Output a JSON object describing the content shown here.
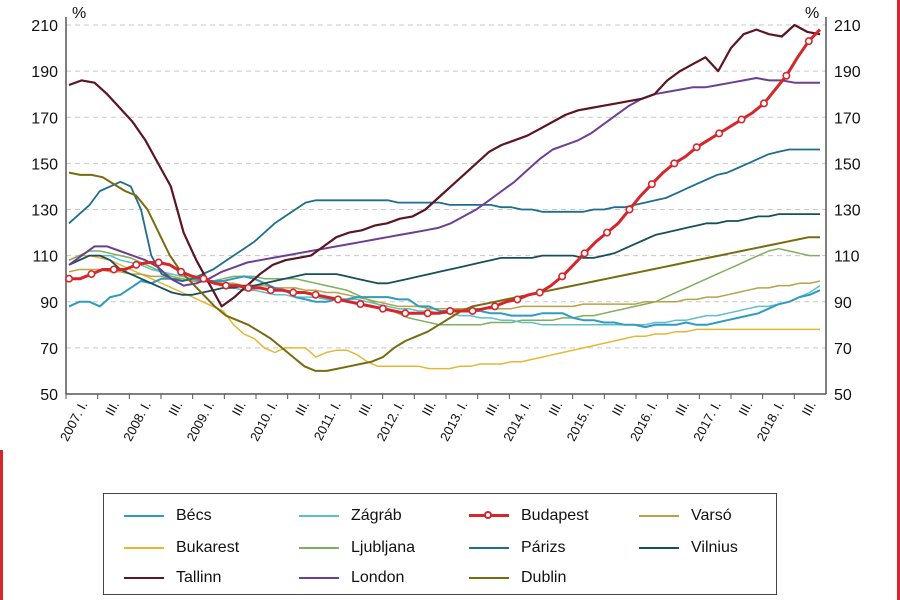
{
  "chart_data": {
    "type": "line",
    "y_unit_left": "%",
    "y_unit_right": "%",
    "ylim": [
      50,
      210
    ],
    "y_ticks": [
      50,
      70,
      90,
      110,
      130,
      150,
      170,
      190,
      210
    ],
    "grid": true,
    "legend_position": "bottom",
    "x_tick_labels": [
      "2007. I.",
      "III.",
      "2008. I.",
      "III.",
      "2009. I.",
      "III.",
      "2010. I.",
      "III.",
      "2011. I.",
      "III.",
      "2012. I.",
      "III.",
      "2013. I.",
      "III.",
      "2014. I.",
      "III.",
      "2015. I.",
      "III.",
      "2016. I.",
      "III.",
      "2017. I.",
      "III.",
      "2018. I.",
      "III."
    ],
    "series": [
      {
        "name": "Bécs",
        "color": "#2f9bc1",
        "width": 2,
        "marker": false,
        "values": [
          88,
          90,
          90,
          88,
          92,
          93,
          96,
          99,
          98,
          100,
          100,
          99,
          100,
          99,
          99,
          99,
          100,
          101,
          100,
          98,
          96,
          95,
          92,
          91,
          90,
          90,
          91,
          91,
          92,
          92,
          92,
          92,
          91,
          91,
          88,
          88,
          86,
          86,
          86,
          86,
          86,
          85,
          85,
          84,
          84,
          84,
          85,
          85,
          85,
          83,
          82,
          82,
          81,
          81,
          80,
          80,
          79,
          80,
          80,
          80,
          81,
          80,
          80,
          81,
          82,
          83,
          84,
          85,
          87,
          89,
          90,
          92,
          93,
          95
        ]
      },
      {
        "name": "Zágráb",
        "color": "#5fbfc6",
        "width": 1.5,
        "marker": false,
        "values": [
          106,
          108,
          110,
          110,
          110,
          108,
          107,
          106,
          104,
          103,
          102,
          101,
          100,
          99,
          98,
          97,
          96,
          95,
          95,
          94,
          93,
          93,
          92,
          92,
          92,
          91,
          91,
          91,
          91,
          90,
          89,
          88,
          87,
          87,
          86,
          86,
          85,
          85,
          84,
          84,
          83,
          83,
          82,
          82,
          81,
          81,
          80,
          80,
          80,
          80,
          80,
          80,
          80,
          80,
          80,
          80,
          80,
          81,
          81,
          82,
          82,
          83,
          84,
          84,
          85,
          86,
          87,
          88,
          88,
          89,
          90,
          92,
          94,
          97
        ]
      },
      {
        "name": "Budapest",
        "color": "#d6262b",
        "width": 3,
        "marker": true,
        "values": [
          100,
          100,
          102,
          104,
          104,
          104,
          106,
          107,
          107,
          106,
          103,
          101,
          100,
          98,
          97,
          97,
          96,
          96,
          95,
          95,
          94,
          94,
          93,
          92,
          91,
          90,
          89,
          88,
          87,
          86,
          85,
          85,
          85,
          85,
          86,
          86,
          86,
          87,
          88,
          90,
          91,
          93,
          94,
          97,
          101,
          106,
          111,
          116,
          120,
          124,
          130,
          136,
          141,
          146,
          150,
          153,
          157,
          160,
          163,
          166,
          169,
          172,
          176,
          182,
          188,
          196,
          203,
          208
        ]
      },
      {
        "name": "Varsó",
        "color": "#b7a244",
        "width": 1.5,
        "marker": false,
        "values": [
          103,
          104,
          104,
          104,
          103,
          103,
          102,
          102,
          101,
          101,
          100,
          100,
          99,
          99,
          99,
          98,
          98,
          97,
          97,
          97,
          96,
          96,
          96,
          95,
          95,
          94,
          94,
          93,
          92,
          91,
          90,
          89,
          88,
          88,
          88,
          87,
          87,
          87,
          87,
          87,
          87,
          87,
          87,
          87,
          88,
          88,
          88,
          88,
          88,
          88,
          89,
          89,
          89,
          89,
          89,
          89,
          90,
          90,
          90,
          90,
          91,
          91,
          92,
          92,
          93,
          94,
          95,
          96,
          96,
          97,
          97,
          98,
          98,
          99
        ]
      },
      {
        "name": "Bukarest",
        "color": "#e3b833",
        "width": 1.5,
        "marker": false,
        "values": [
          108,
          110,
          110,
          109,
          108,
          106,
          104,
          102,
          100,
          98,
          96,
          94,
          92,
          90,
          88,
          86,
          80,
          76,
          74,
          70,
          68,
          70,
          70,
          70,
          66,
          68,
          69,
          69,
          67,
          64,
          62,
          62,
          62,
          62,
          62,
          61,
          61,
          61,
          62,
          62,
          63,
          63,
          63,
          64,
          64,
          65,
          66,
          67,
          68,
          69,
          70,
          71,
          72,
          73,
          74,
          75,
          75,
          76,
          76,
          77,
          77,
          78,
          78,
          78,
          78,
          78,
          78,
          78,
          78,
          78,
          78,
          78,
          78,
          78
        ]
      },
      {
        "name": "Ljubljana",
        "color": "#7fae5c",
        "width": 1.5,
        "marker": false,
        "values": [
          108,
          110,
          112,
          112,
          111,
          110,
          109,
          107,
          105,
          103,
          101,
          100,
          99,
          99,
          99,
          100,
          101,
          101,
          101,
          100,
          100,
          100,
          100,
          99,
          98,
          97,
          96,
          95,
          93,
          91,
          89,
          87,
          85,
          83,
          82,
          81,
          80,
          80,
          80,
          80,
          80,
          81,
          81,
          81,
          82,
          82,
          82,
          82,
          83,
          83,
          84,
          84,
          85,
          86,
          87,
          88,
          89,
          90,
          92,
          94,
          96,
          98,
          100,
          102,
          104,
          106,
          108,
          110,
          112,
          113,
          112,
          111,
          110,
          110
        ]
      },
      {
        "name": "Párizs",
        "color": "#1d6f8c",
        "width": 1.8,
        "marker": false,
        "values": [
          124,
          128,
          132,
          138,
          140,
          142,
          140,
          130,
          110,
          102,
          100,
          99,
          100,
          102,
          104,
          107,
          110,
          113,
          116,
          120,
          124,
          127,
          130,
          133,
          134,
          134,
          134,
          134,
          134,
          134,
          134,
          134,
          133,
          133,
          133,
          133,
          133,
          132,
          132,
          132,
          132,
          132,
          131,
          131,
          130,
          130,
          129,
          129,
          129,
          129,
          129,
          130,
          130,
          131,
          131,
          132,
          133,
          134,
          135,
          137,
          139,
          141,
          143,
          145,
          146,
          148,
          150,
          152,
          154,
          155,
          156,
          156,
          156,
          156
        ]
      },
      {
        "name": "Vilnius",
        "color": "#184f5c",
        "width": 1.8,
        "marker": false,
        "values": [
          106,
          108,
          110,
          110,
          108,
          104,
          102,
          100,
          98,
          96,
          94,
          93,
          93,
          94,
          95,
          96,
          96,
          97,
          97,
          98,
          99,
          100,
          101,
          102,
          102,
          102,
          102,
          101,
          100,
          99,
          98,
          98,
          99,
          100,
          101,
          102,
          103,
          104,
          105,
          106,
          107,
          108,
          109,
          109,
          109,
          109,
          110,
          110,
          110,
          110,
          109,
          109,
          110,
          111,
          113,
          115,
          117,
          119,
          120,
          121,
          122,
          123,
          124,
          124,
          125,
          125,
          126,
          127,
          127,
          128,
          128,
          128,
          128,
          128
        ]
      },
      {
        "name": "Tallinn",
        "color": "#5a1621",
        "width": 2.2,
        "marker": false,
        "values": [
          184,
          186,
          185,
          180,
          174,
          168,
          160,
          150,
          140,
          120,
          108,
          98,
          88,
          92,
          97,
          102,
          106,
          108,
          109,
          110,
          114,
          118,
          120,
          121,
          123,
          124,
          126,
          127,
          130,
          135,
          140,
          145,
          150,
          155,
          158,
          160,
          162,
          165,
          168,
          171,
          173,
          174,
          175,
          176,
          177,
          178,
          180,
          186,
          190,
          193,
          196,
          190,
          200,
          206,
          208,
          206,
          205,
          210,
          207,
          206
        ]
      },
      {
        "name": "London",
        "color": "#6e3f90",
        "width": 2,
        "marker": false,
        "values": [
          106,
          110,
          114,
          114,
          112,
          110,
          108,
          105,
          100,
          97,
          98,
          100,
          103,
          105,
          107,
          108,
          109,
          110,
          111,
          112,
          113,
          114,
          115,
          116,
          117,
          118,
          119,
          120,
          121,
          122,
          124,
          127,
          130,
          134,
          138,
          142,
          147,
          152,
          156,
          158,
          160,
          163,
          167,
          171,
          175,
          178,
          180,
          181,
          182,
          183,
          183,
          184,
          185,
          186,
          187,
          186,
          186,
          185,
          185,
          185
        ]
      },
      {
        "name": "Dublin",
        "color": "#7a6a10",
        "width": 2,
        "marker": false,
        "values": [
          146,
          145,
          145,
          144,
          141,
          138,
          136,
          130,
          120,
          110,
          103,
          98,
          93,
          88,
          84,
          82,
          80,
          77,
          74,
          70,
          66,
          62,
          60,
          60,
          61,
          62,
          63,
          64,
          66,
          70,
          73,
          75,
          77,
          80,
          83,
          86,
          88,
          89,
          90,
          91,
          92,
          93,
          94,
          95,
          96,
          97,
          98,
          99,
          100,
          101,
          102,
          103,
          104,
          105,
          106,
          107,
          108,
          109,
          110,
          111,
          112,
          113,
          114,
          115,
          116,
          117,
          118,
          118
        ]
      }
    ]
  }
}
